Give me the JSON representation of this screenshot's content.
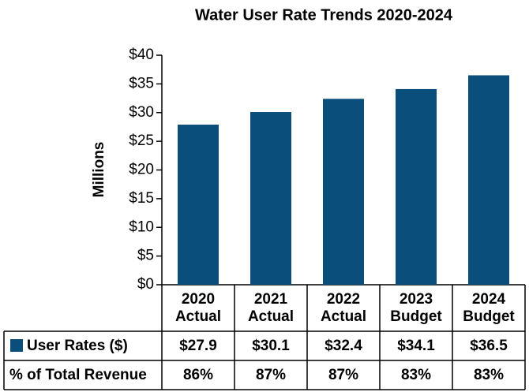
{
  "chart_data": {
    "type": "bar",
    "title": "Water User Rate Trends 2020-2024",
    "y_axis_label": "Millions",
    "categories": [
      [
        "2020",
        "Actual"
      ],
      [
        "2021",
        "Actual"
      ],
      [
        "2022",
        "Actual"
      ],
      [
        "2023",
        "Budget"
      ],
      [
        "2024",
        "Budget"
      ]
    ],
    "series": [
      {
        "name": "User Rates ($)",
        "color": "#0a4e7c",
        "values": [
          27.9,
          30.1,
          32.4,
          34.1,
          36.5
        ],
        "value_labels": [
          "$27.9",
          "$30.1",
          "$32.4",
          "$34.1",
          "$36.5"
        ]
      }
    ],
    "table_rows": [
      {
        "name": "% of Total Revenue",
        "values": [
          86,
          87,
          87,
          83,
          83
        ],
        "value_labels": [
          "86%",
          "87%",
          "87%",
          "83%",
          "83%"
        ]
      }
    ],
    "ylim": [
      0,
      40
    ],
    "yticks": [
      {
        "value": 0,
        "label": "$0"
      },
      {
        "value": 5,
        "label": "$5"
      },
      {
        "value": 10,
        "label": "$10"
      },
      {
        "value": 15,
        "label": "$15"
      },
      {
        "value": 20,
        "label": "$20"
      },
      {
        "value": 25,
        "label": "$25"
      },
      {
        "value": 30,
        "label": "$30"
      },
      {
        "value": 35,
        "label": "$35"
      },
      {
        "value": 40,
        "label": "$40"
      }
    ]
  }
}
